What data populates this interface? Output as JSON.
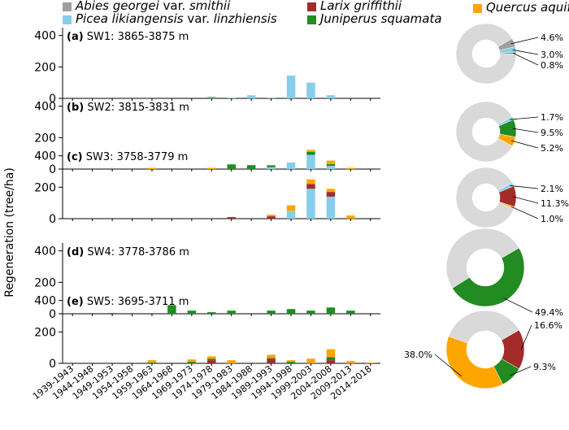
{
  "chart_data": {
    "type": "bar",
    "stacked": true,
    "ylabel": "Regeneration (tree/ha)",
    "ylim": [
      0,
      450
    ],
    "yticks": [
      0,
      200,
      400
    ],
    "categories": [
      "1939-1943",
      "1944-1948",
      "1949-1953",
      "1954-1958",
      "1959-1963",
      "1964-1968",
      "1969-1973",
      "1974-1978",
      "1979-1983",
      "1984-1988",
      "1989-1993",
      "1994-1998",
      "1999-2003",
      "2004-2008",
      "2009-2013",
      "2014-2018"
    ],
    "legend": [
      {
        "key": "abies",
        "genus": "Abies georgei",
        "rank": "var.",
        "variety": "smithii",
        "color": "#9e9e9e"
      },
      {
        "key": "picea",
        "genus": "Picea likiangensis",
        "rank": "var.",
        "variety": "linzhiensis",
        "color": "#87ceeb"
      },
      {
        "key": "larix",
        "genus": "Larix griffithii",
        "rank": "",
        "variety": "",
        "color": "#a52a2a"
      },
      {
        "key": "juniperus",
        "genus": "Juniperus squamata",
        "rank": "",
        "variety": "",
        "color": "#228b22"
      },
      {
        "key": "quercus",
        "genus": "Quercus aquifolides",
        "rank": "",
        "variety": "",
        "color": "#ffa500"
      }
    ],
    "panels": [
      {
        "label": "(a)",
        "title": "SW1: 3865-3875 m",
        "series": {
          "abies": [
            0,
            0,
            0,
            0,
            0,
            0,
            0,
            0,
            0,
            0,
            0,
            0,
            0,
            0,
            0,
            0
          ],
          "picea": [
            0,
            0,
            0,
            0,
            0,
            0,
            0,
            3,
            5,
            20,
            5,
            145,
            100,
            20,
            0,
            0
          ],
          "larix": [
            0,
            0,
            0,
            0,
            0,
            0,
            0,
            0,
            0,
            0,
            0,
            0,
            0,
            0,
            0,
            0
          ],
          "juniperus": [
            0,
            0,
            0,
            0,
            0,
            0,
            0,
            5,
            0,
            0,
            0,
            0,
            0,
            0,
            0,
            0
          ],
          "quercus": [
            0,
            0,
            0,
            0,
            0,
            0,
            0,
            0,
            0,
            0,
            0,
            0,
            0,
            0,
            0,
            0
          ]
        },
        "pie": {
          "slices": [
            {
              "species": "abies",
              "percent": 4.6
            },
            {
              "species": "picea",
              "percent": 3.0
            },
            {
              "species": "juniperus",
              "percent": 0.8
            },
            {
              "species": "other",
              "percent": 91.6
            }
          ],
          "labels": [
            "4.6%",
            "3.0%",
            "0.8%"
          ]
        }
      },
      {
        "label": "(b)",
        "title": "SW2: 3815-3831 m",
        "series": {
          "abies": [
            0,
            0,
            0,
            0,
            0,
            0,
            0,
            0,
            0,
            0,
            0,
            0,
            0,
            0,
            0,
            0
          ],
          "picea": [
            0,
            0,
            0,
            0,
            0,
            0,
            0,
            0,
            0,
            0,
            12,
            42,
            90,
            20,
            0,
            0
          ],
          "larix": [
            0,
            0,
            0,
            0,
            0,
            0,
            0,
            0,
            0,
            0,
            0,
            0,
            0,
            0,
            0,
            0
          ],
          "juniperus": [
            0,
            0,
            0,
            0,
            0,
            0,
            0,
            0,
            30,
            25,
            12,
            0,
            20,
            12,
            0,
            0
          ],
          "quercus": [
            0,
            0,
            0,
            0,
            8,
            0,
            0,
            8,
            0,
            0,
            0,
            0,
            12,
            22,
            8,
            0
          ]
        },
        "pie": {
          "slices": [
            {
              "species": "picea",
              "percent": 1.7
            },
            {
              "species": "juniperus",
              "percent": 9.5
            },
            {
              "species": "quercus",
              "percent": 5.2
            },
            {
              "species": "other",
              "percent": 83.6
            }
          ],
          "labels": [
            "1.7%",
            "9.5%",
            "5.2%"
          ]
        }
      },
      {
        "label": "(c)",
        "title": "SW3: 3758-3779 m",
        "series": {
          "abies": [
            0,
            0,
            0,
            0,
            0,
            0,
            0,
            0,
            0,
            0,
            0,
            0,
            0,
            0,
            0,
            0
          ],
          "picea": [
            0,
            0,
            0,
            0,
            0,
            0,
            0,
            0,
            0,
            0,
            0,
            50,
            190,
            140,
            0,
            0
          ],
          "larix": [
            0,
            0,
            0,
            0,
            0,
            0,
            0,
            0,
            10,
            0,
            15,
            0,
            30,
            30,
            0,
            0
          ],
          "juniperus": [
            0,
            0,
            0,
            0,
            0,
            0,
            0,
            0,
            0,
            0,
            0,
            0,
            0,
            0,
            0,
            0
          ],
          "quercus": [
            0,
            0,
            0,
            0,
            0,
            0,
            0,
            0,
            0,
            0,
            10,
            35,
            30,
            20,
            20,
            0
          ]
        },
        "pie": {
          "slices": [
            {
              "species": "picea",
              "percent": 2.1
            },
            {
              "species": "larix",
              "percent": 11.3
            },
            {
              "species": "quercus",
              "percent": 1.0
            },
            {
              "species": "other",
              "percent": 85.6
            }
          ],
          "labels": [
            "2.1%",
            "11.3%",
            "1.0%"
          ]
        }
      },
      {
        "label": "(d)",
        "title": "SW4: 3778-3786 m",
        "series": {
          "abies": [
            0,
            0,
            0,
            0,
            0,
            0,
            0,
            0,
            0,
            0,
            0,
            0,
            0,
            0,
            0,
            0
          ],
          "picea": [
            0,
            0,
            0,
            0,
            0,
            0,
            0,
            0,
            0,
            0,
            0,
            0,
            0,
            0,
            0,
            0
          ],
          "larix": [
            0,
            0,
            0,
            0,
            0,
            0,
            0,
            0,
            0,
            0,
            0,
            0,
            0,
            0,
            0,
            0
          ],
          "juniperus": [
            0,
            0,
            5,
            0,
            0,
            55,
            20,
            10,
            20,
            0,
            20,
            30,
            20,
            40,
            20,
            0
          ],
          "quercus": [
            0,
            0,
            0,
            0,
            0,
            0,
            0,
            0,
            0,
            0,
            0,
            0,
            0,
            0,
            0,
            0
          ]
        },
        "pie": {
          "slices": [
            {
              "species": "juniperus",
              "percent": 49.4
            },
            {
              "species": "other",
              "percent": 50.6
            }
          ],
          "labels": [
            "49.4%"
          ]
        }
      },
      {
        "label": "(e)",
        "title": "SW5: 3695-3711 m",
        "series": {
          "abies": [
            0,
            0,
            0,
            0,
            0,
            0,
            0,
            0,
            0,
            0,
            0,
            0,
            0,
            0,
            0,
            0
          ],
          "picea": [
            0,
            0,
            0,
            0,
            0,
            0,
            0,
            0,
            0,
            0,
            0,
            0,
            0,
            0,
            0,
            0
          ],
          "larix": [
            0,
            0,
            0,
            0,
            0,
            0,
            0,
            20,
            0,
            0,
            30,
            0,
            0,
            20,
            0,
            0
          ],
          "juniperus": [
            0,
            0,
            0,
            0,
            5,
            0,
            10,
            10,
            0,
            0,
            5,
            10,
            0,
            20,
            0,
            0
          ],
          "quercus": [
            0,
            0,
            0,
            0,
            15,
            0,
            15,
            15,
            20,
            0,
            20,
            10,
            30,
            50,
            15,
            5
          ]
        },
        "pie": {
          "slices": [
            {
              "species": "larix",
              "percent": 16.6
            },
            {
              "species": "juniperus",
              "percent": 9.3
            },
            {
              "species": "quercus",
              "percent": 38.0
            },
            {
              "species": "other",
              "percent": 36.1
            }
          ],
          "labels": [
            "16.6%",
            "9.3%",
            "38.0%"
          ]
        }
      }
    ]
  }
}
